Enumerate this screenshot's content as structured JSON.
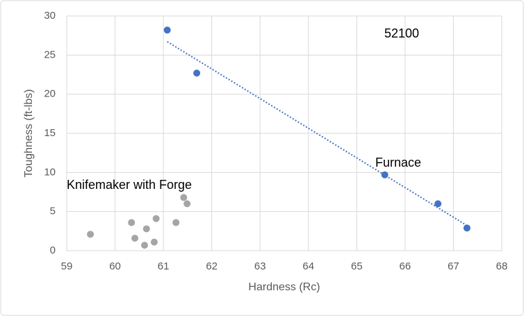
{
  "chart_data": {
    "type": "scatter",
    "title": "52100",
    "x_label": "Hardness (Rc)",
    "y_label": "Toughness (ft-lbs)",
    "xlim": [
      59,
      68
    ],
    "ylim": [
      0,
      30
    ],
    "xticks": [
      59,
      60,
      61,
      62,
      63,
      64,
      65,
      66,
      67,
      68
    ],
    "yticks": [
      0,
      5,
      10,
      15,
      20,
      25,
      30
    ],
    "grid": true,
    "series": [
      {
        "name": "Furnace",
        "color": "#4472c4",
        "trendline": true,
        "x": [
          61.08,
          61.69,
          65.58,
          66.68,
          67.28
        ],
        "values": [
          28.2,
          22.7,
          9.7,
          6.0,
          2.9
        ]
      },
      {
        "name": "Knifemaker with Forge",
        "color": "#a5a5a5",
        "trendline": false,
        "x": [
          59.49,
          60.34,
          60.41,
          60.61,
          60.65,
          60.81,
          60.85,
          61.26,
          61.42,
          61.49
        ],
        "values": [
          2.1,
          3.6,
          1.6,
          0.7,
          2.8,
          1.1,
          4.1,
          3.6,
          6.8,
          6.0
        ]
      }
    ]
  }
}
